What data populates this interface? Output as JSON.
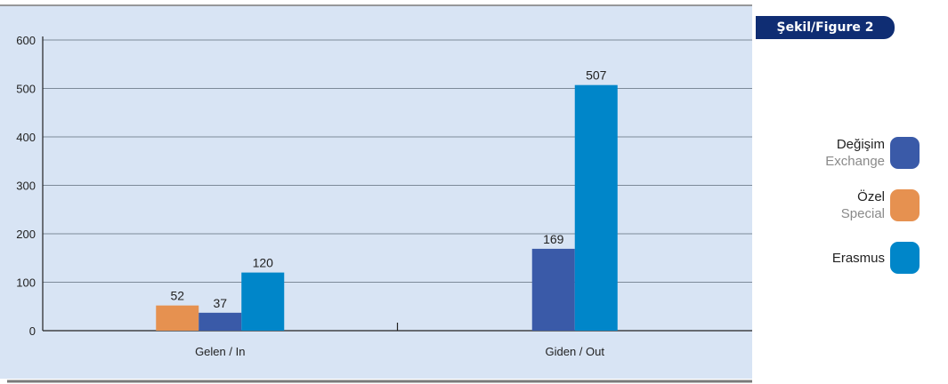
{
  "figure_tag": "Şekil/Figure 2",
  "legend": [
    {
      "primary": "Değişim",
      "secondary": "Exchange",
      "color": "#3a5aa8"
    },
    {
      "primary": "Özel",
      "secondary": "Special",
      "color": "#e69150"
    },
    {
      "primary": "Erasmus",
      "secondary": "",
      "color": "#0086c9"
    }
  ],
  "chart_data": {
    "type": "bar",
    "categories": [
      "Gelen / In",
      "Giden / Out"
    ],
    "series": [
      {
        "name": "Özel Special",
        "color": "#e69150",
        "values": [
          52,
          null
        ]
      },
      {
        "name": "Değişim Exchange",
        "color": "#3a5aa8",
        "values": [
          37,
          169
        ]
      },
      {
        "name": "Erasmus",
        "color": "#0086c9",
        "values": [
          120,
          507
        ]
      }
    ],
    "ylim": [
      0,
      600
    ],
    "yticks": [
      0,
      100,
      200,
      300,
      400,
      500,
      600
    ],
    "grid": true,
    "plot_background": "#d8e4f4",
    "legend_position": "right"
  }
}
